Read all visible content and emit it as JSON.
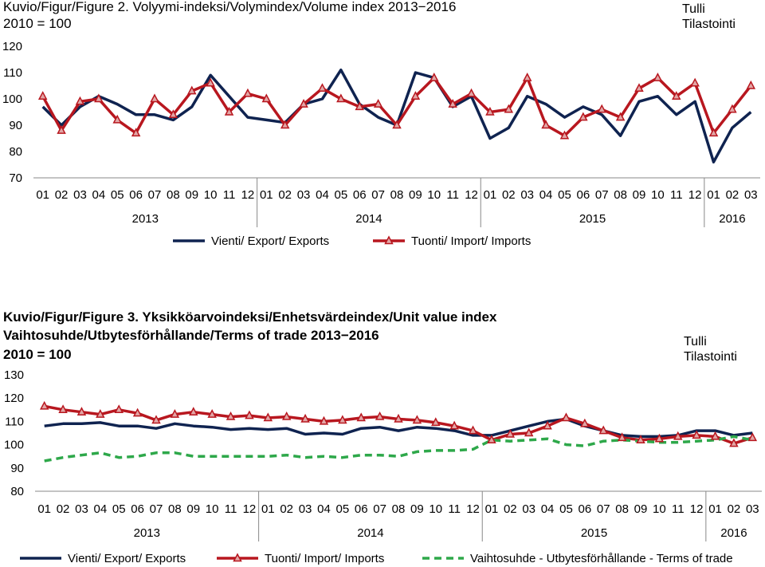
{
  "figures": [
    {
      "title_lines": [
        "Kuvio/Figur/Figure 2. Volyymi-indeksi/Volymindex/Volume index 2013−2016",
        "2010 = 100"
      ],
      "source": [
        "Tulli",
        "Tilastointi"
      ]
    },
    {
      "title_lines": [
        "Kuvio/Figur/Figure 3. Yksikköarvoindeksi/Enhetsvärdeindex/Unit value index",
        "Vaihtosuhde/Utbytesförhållande/Terms of trade  2013−2016",
        "2010 = 100"
      ],
      "source": [
        "Tulli",
        "Tilastointi"
      ]
    }
  ],
  "chart_data": [
    {
      "type": "line",
      "categories": [
        "01",
        "02",
        "03",
        "04",
        "05",
        "06",
        "07",
        "08",
        "09",
        "10",
        "11",
        "12",
        "01",
        "02",
        "03",
        "04",
        "05",
        "06",
        "07",
        "08",
        "09",
        "10",
        "11",
        "12",
        "01",
        "02",
        "03",
        "04",
        "05",
        "06",
        "07",
        "08",
        "09",
        "10",
        "11",
        "12",
        "01",
        "02",
        "03"
      ],
      "years": [
        {
          "label": "2013",
          "start": 0,
          "end": 12
        },
        {
          "label": "2014",
          "start": 12,
          "end": 24
        },
        {
          "label": "2015",
          "start": 24,
          "end": 36
        },
        {
          "label": "2016",
          "start": 36,
          "end": 39
        }
      ],
      "ylim": [
        70,
        120
      ],
      "yticks": [
        70,
        80,
        90,
        100,
        110,
        120
      ],
      "legend_position": "bottom",
      "series": [
        {
          "name": "Vienti/ Export/ Exports",
          "color": "#0f2350",
          "style": "solid",
          "marker": false,
          "values": [
            97,
            90,
            97,
            101,
            98,
            94,
            94,
            92,
            97,
            109,
            101,
            93,
            92,
            91,
            98,
            100,
            111,
            98,
            93,
            90,
            110,
            108,
            97,
            101,
            85,
            89,
            101,
            98,
            93,
            97,
            94,
            86,
            99,
            101,
            94,
            99,
            76,
            89,
            95
          ]
        },
        {
          "name": "Tuonti/ Import/ Imports",
          "color": "#b8171f",
          "style": "solid",
          "marker": true,
          "values": [
            101,
            88,
            99,
            100,
            92,
            87,
            100,
            94,
            103,
            106,
            95,
            102,
            100,
            90,
            98,
            104,
            100,
            97,
            98,
            90,
            101,
            108,
            98,
            102,
            95,
            96,
            108,
            90,
            86,
            93,
            96,
            93,
            104,
            108,
            101,
            106,
            87,
            96,
            105
          ]
        }
      ]
    },
    {
      "type": "line",
      "categories": [
        "01",
        "02",
        "03",
        "04",
        "05",
        "06",
        "07",
        "08",
        "09",
        "10",
        "11",
        "12",
        "01",
        "02",
        "03",
        "04",
        "05",
        "06",
        "07",
        "08",
        "09",
        "10",
        "11",
        "12",
        "01",
        "02",
        "03",
        "04",
        "05",
        "06",
        "07",
        "08",
        "09",
        "10",
        "11",
        "12",
        "01",
        "02",
        "03"
      ],
      "years": [
        {
          "label": "2013",
          "start": 0,
          "end": 12
        },
        {
          "label": "2014",
          "start": 12,
          "end": 24
        },
        {
          "label": "2015",
          "start": 24,
          "end": 36
        },
        {
          "label": "2016",
          "start": 36,
          "end": 39
        }
      ],
      "ylim": [
        80,
        130
      ],
      "yticks": [
        80,
        90,
        100,
        110,
        120,
        130
      ],
      "legend_position": "bottom",
      "series": [
        {
          "name": "Vienti/ Export/ Exports",
          "color": "#0f2350",
          "style": "solid",
          "marker": false,
          "values": [
            108,
            109,
            109,
            109.5,
            108,
            108,
            107,
            109,
            108,
            107.5,
            106.5,
            107,
            106.5,
            107,
            104.5,
            105,
            104.5,
            107,
            107.5,
            106,
            107.5,
            107,
            106,
            104,
            104,
            106,
            108,
            110,
            111,
            108,
            106,
            104,
            103.5,
            103.5,
            104,
            106,
            106,
            104,
            105
          ]
        },
        {
          "name": "Tuonti/ Import/ Imports",
          "color": "#b8171f",
          "style": "solid",
          "marker": true,
          "values": [
            116.5,
            115,
            114,
            113,
            115,
            113.5,
            110.5,
            113,
            114,
            113,
            112,
            112.5,
            111.5,
            112,
            111,
            110,
            110.5,
            111.5,
            112,
            111,
            110.5,
            109.5,
            108,
            106,
            102,
            104.5,
            105,
            108,
            111.5,
            109,
            106,
            103,
            102,
            102.5,
            103.5,
            104,
            103.5,
            100.5,
            103
          ]
        },
        {
          "name": "Vaihtosuhde - Utbytesförhållande - Terms of trade",
          "color": "#2ea84a",
          "style": "dashed",
          "marker": false,
          "values": [
            93,
            94.5,
            95.5,
            96.5,
            94.5,
            95,
            96.5,
            96.5,
            95,
            95,
            95,
            95,
            95,
            95.5,
            94.5,
            95,
            94.5,
            95.5,
            95.5,
            95,
            97,
            97.5,
            97.5,
            98,
            102,
            101.5,
            102,
            102.5,
            100,
            99.5,
            101.5,
            102,
            101.5,
            101,
            101,
            101.5,
            102,
            103.5,
            102
          ]
        }
      ]
    }
  ]
}
